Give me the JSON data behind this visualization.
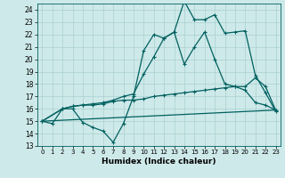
{
  "xlabel": "Humidex (Indice chaleur)",
  "background_color": "#cee9e9",
  "grid_color": "#aad0d0",
  "line_color": "#006060",
  "xlim": [
    -0.5,
    23.5
  ],
  "ylim": [
    13,
    24.5
  ],
  "yticks": [
    13,
    14,
    15,
    16,
    17,
    18,
    19,
    20,
    21,
    22,
    23,
    24
  ],
  "xticks": [
    0,
    1,
    2,
    3,
    4,
    5,
    6,
    7,
    8,
    9,
    10,
    11,
    12,
    13,
    14,
    15,
    16,
    17,
    18,
    19,
    20,
    21,
    22,
    23
  ],
  "line1_x": [
    0,
    1,
    2,
    3,
    4,
    5,
    6,
    7,
    8,
    9,
    10,
    11,
    12,
    13,
    14,
    15,
    16,
    17,
    18,
    19,
    20,
    21,
    22,
    23
  ],
  "line1_y": [
    15.0,
    14.8,
    16.0,
    16.0,
    14.9,
    14.5,
    14.2,
    13.3,
    14.8,
    17.0,
    20.7,
    22.0,
    21.7,
    22.2,
    24.7,
    23.2,
    23.2,
    23.6,
    22.1,
    22.2,
    22.3,
    18.7,
    17.3,
    15.8
  ],
  "line2_x": [
    0,
    2,
    3,
    4,
    5,
    6,
    7,
    8,
    9,
    10,
    11,
    12,
    13,
    14,
    15,
    16,
    17,
    18,
    19,
    20,
    21,
    22,
    23
  ],
  "line2_y": [
    15.0,
    16.0,
    16.2,
    16.3,
    16.3,
    16.4,
    16.6,
    16.7,
    16.7,
    16.8,
    17.0,
    17.1,
    17.2,
    17.3,
    17.4,
    17.5,
    17.6,
    17.7,
    17.8,
    17.8,
    18.5,
    17.8,
    15.9
  ],
  "line3_x": [
    0,
    23
  ],
  "line3_y": [
    15.0,
    15.9
  ],
  "line4_x": [
    0,
    2,
    3,
    4,
    5,
    6,
    7,
    8,
    9,
    10,
    11,
    12,
    13,
    14,
    15,
    16,
    17,
    18,
    19,
    20,
    21,
    22,
    23
  ],
  "line4_y": [
    15.0,
    16.0,
    16.2,
    16.3,
    16.4,
    16.5,
    16.7,
    17.0,
    17.2,
    18.8,
    20.2,
    21.7,
    22.2,
    19.6,
    21.0,
    22.2,
    20.0,
    18.0,
    17.8,
    17.5,
    16.5,
    16.3,
    15.9
  ]
}
